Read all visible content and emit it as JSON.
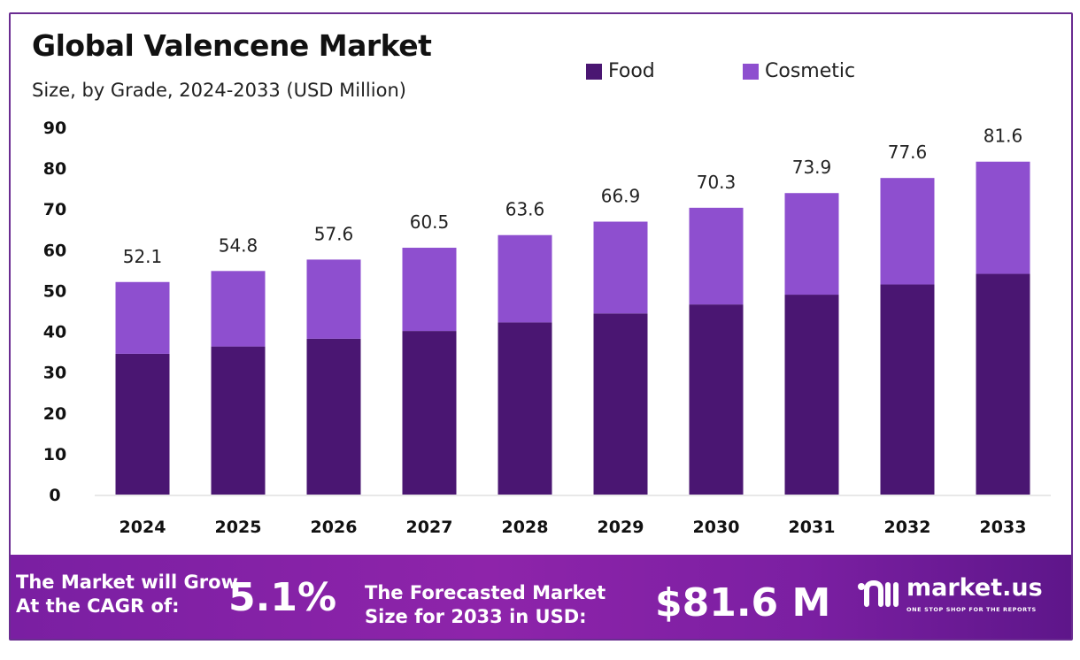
{
  "chart_data": {
    "type": "bar",
    "stacked": true,
    "title": "Global Valencene Market",
    "subtitle": "Size, by Grade, 2024-2033 (USD Million)",
    "categories": [
      "2024",
      "2025",
      "2026",
      "2027",
      "2028",
      "2029",
      "2030",
      "2031",
      "2032",
      "2033"
    ],
    "series": [
      {
        "name": "Food",
        "color": "#4a1672",
        "values": [
          34.5,
          36.3,
          38.2,
          40.1,
          42.2,
          44.4,
          46.6,
          49.0,
          51.5,
          54.1
        ]
      },
      {
        "name": "Cosmetic",
        "color": "#8e4fcf",
        "values": [
          17.6,
          18.5,
          19.4,
          20.4,
          21.4,
          22.5,
          23.7,
          24.9,
          26.1,
          27.5
        ]
      }
    ],
    "totals": [
      "52.1",
      "54.8",
      "57.6",
      "60.5",
      "63.6",
      "66.9",
      "70.3",
      "73.9",
      "77.6",
      "81.6"
    ],
    "yticks": [
      0,
      10,
      20,
      30,
      40,
      50,
      60,
      70,
      80,
      90
    ],
    "ylim": [
      0,
      90
    ],
    "xlabel": "",
    "ylabel": "",
    "grid": false,
    "legend_position": "top-right"
  },
  "banner": {
    "cagr_label_line1": "The Market will Grow",
    "cagr_label_line2": "At the CAGR of:",
    "cagr_value": "5.1%",
    "forecast_label_line1": "The Forecasted Market",
    "forecast_label_line2": "Size for 2033 in USD:",
    "forecast_value": "$81.6 M",
    "brand_name": "market.us",
    "brand_tagline": "ONE STOP SHOP FOR THE REPORTS"
  },
  "colors": {
    "frame": "#6a2c91",
    "food": "#4a1672",
    "cosmetic": "#8e4fcf",
    "banner": "#8e24aa"
  },
  "icons": {
    "brand": "market-us-logo-icon"
  }
}
